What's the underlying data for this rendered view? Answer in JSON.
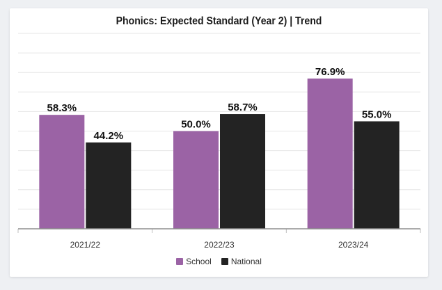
{
  "chart_data": {
    "type": "bar",
    "title": "Phonics: Expected Standard (Year 2) | Trend",
    "categories": [
      "2021/22",
      "2022/23",
      "2023/24"
    ],
    "series": [
      {
        "name": "School",
        "color": "#9b63a5",
        "values": [
          58.3,
          50.0,
          76.9
        ],
        "labels": [
          "58.3%",
          "50.0%",
          "76.9%"
        ]
      },
      {
        "name": "National",
        "color": "#232323",
        "values": [
          44.2,
          58.7,
          55.0
        ],
        "labels": [
          "44.2%",
          "58.7%",
          "55.0%"
        ]
      }
    ],
    "ylim": [
      0,
      100
    ],
    "grid": true,
    "legend_position": "bottom"
  }
}
